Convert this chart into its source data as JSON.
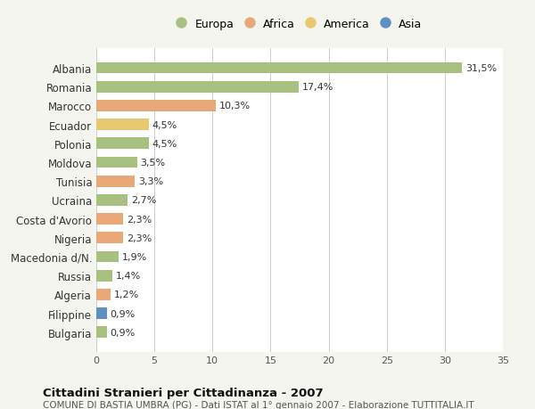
{
  "categories": [
    "Albania",
    "Romania",
    "Marocco",
    "Ecuador",
    "Polonia",
    "Moldova",
    "Tunisia",
    "Ucraina",
    "Costa d'Avorio",
    "Nigeria",
    "Macedonia d/N.",
    "Russia",
    "Algeria",
    "Filippine",
    "Bulgaria"
  ],
  "values": [
    31.5,
    17.4,
    10.3,
    4.5,
    4.5,
    3.5,
    3.3,
    2.7,
    2.3,
    2.3,
    1.9,
    1.4,
    1.2,
    0.9,
    0.9
  ],
  "labels": [
    "31,5%",
    "17,4%",
    "10,3%",
    "4,5%",
    "4,5%",
    "3,5%",
    "3,3%",
    "2,7%",
    "2,3%",
    "2,3%",
    "1,9%",
    "1,4%",
    "1,2%",
    "0,9%",
    "0,9%"
  ],
  "colors": [
    "#a8c080",
    "#a8c080",
    "#e8a878",
    "#e8c870",
    "#a8c080",
    "#a8c080",
    "#e8a878",
    "#a8c080",
    "#e8a878",
    "#e8a878",
    "#a8c080",
    "#a8c080",
    "#e8a878",
    "#6090c0",
    "#a8c080"
  ],
  "legend_labels": [
    "Europa",
    "Africa",
    "America",
    "Asia"
  ],
  "legend_colors": [
    "#a8c080",
    "#e8a878",
    "#e8c870",
    "#6090c0"
  ],
  "title": "Cittadini Stranieri per Cittadinanza - 2007",
  "subtitle": "COMUNE DI BASTIA UMBRA (PG) - Dati ISTAT al 1° gennaio 2007 - Elaborazione TUTTITALIA.IT",
  "xlim": [
    0,
    35
  ],
  "xticks": [
    0,
    5,
    10,
    15,
    20,
    25,
    30,
    35
  ],
  "background_color": "#f5f5f0",
  "bar_background": "#ffffff",
  "grid_color": "#cccccc"
}
